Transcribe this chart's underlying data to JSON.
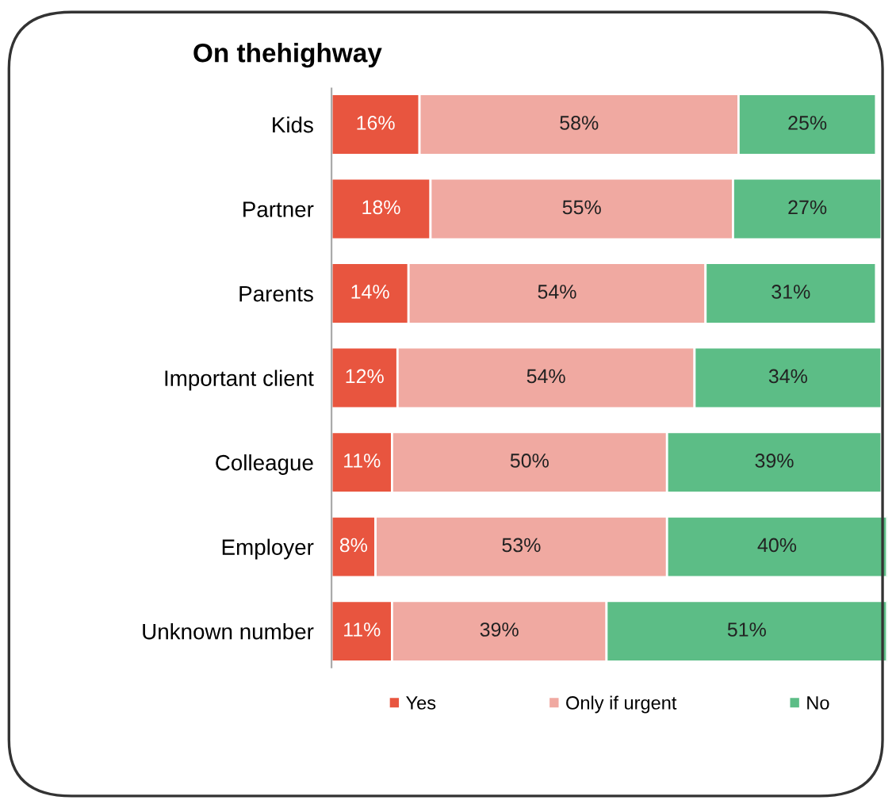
{
  "chart_data": {
    "type": "bar",
    "title": "On thehighway",
    "orientation": "horizontal",
    "stacked": true,
    "legend": "bottom",
    "grid": false,
    "categories": [
      "Kids",
      "Partner",
      "Parents",
      "Important client",
      "Colleague",
      "Employer",
      "Unknown number"
    ],
    "series": [
      {
        "name": "Yes",
        "color": "#e8553f",
        "values": [
          16,
          18,
          14,
          12,
          11,
          8,
          11
        ],
        "value_labels": [
          "16%",
          "18%",
          "14%",
          "12%",
          "11%",
          "8%",
          "11%"
        ]
      },
      {
        "name": "Only if urgent",
        "color": "#f0a9a1",
        "values": [
          58,
          55,
          54,
          54,
          50,
          53,
          39
        ],
        "value_labels": [
          "58%",
          "55%",
          "54%",
          "54%",
          "50%",
          "53%",
          "39%"
        ]
      },
      {
        "name": "No",
        "color": "#5cbd86",
        "values": [
          25,
          27,
          31,
          34,
          39,
          40,
          51
        ],
        "value_labels": [
          "25%",
          "27%",
          "31%",
          "34%",
          "39%",
          "40%",
          "51%"
        ]
      }
    ]
  }
}
